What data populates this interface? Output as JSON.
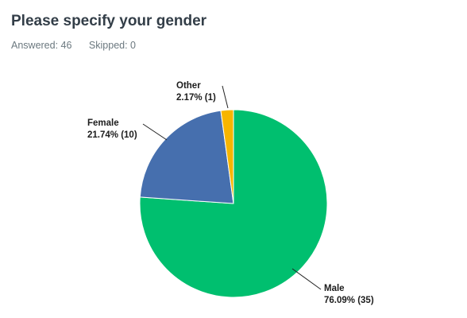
{
  "header": {
    "title": "Please specify your gender",
    "answered": "Answered: 46",
    "skipped": "Skipped: 0"
  },
  "chart_data": {
    "type": "pie",
    "slices": [
      {
        "label": "Male",
        "percent": 76.09,
        "count": 35,
        "value_text": "76.09% (35)",
        "color": "#00bf6f"
      },
      {
        "label": "Female",
        "percent": 21.74,
        "count": 10,
        "value_text": "21.74% (10)",
        "color": "#466fae"
      },
      {
        "label": "Other",
        "percent": 2.17,
        "count": 1,
        "value_text": "2.17% (1)",
        "color": "#f7b500"
      }
    ]
  }
}
